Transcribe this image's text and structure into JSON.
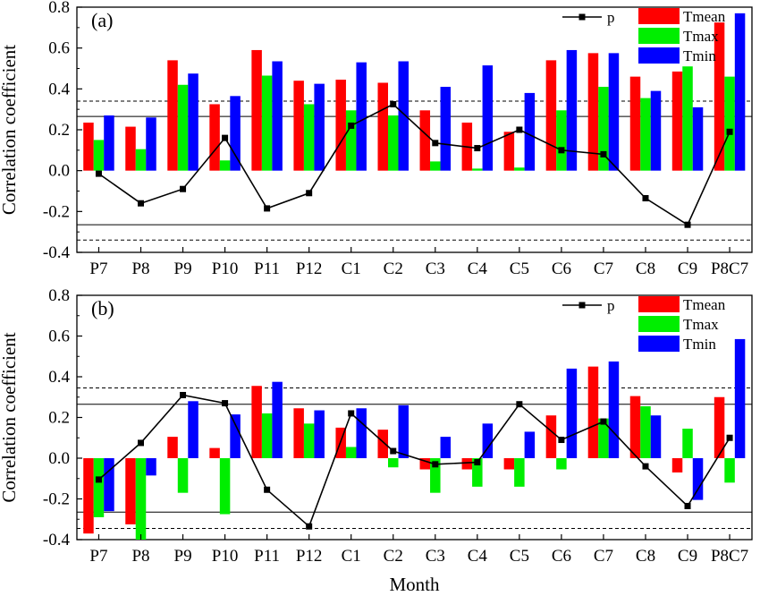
{
  "chart_data": [
    {
      "type": "bar",
      "panel_label": "(a)",
      "xlabel": "",
      "ylabel": "Correlation coefficient",
      "ylim": [
        -0.4,
        0.8
      ],
      "yticks": [
        "-0.4",
        "-0.2",
        "0.0",
        "0.2",
        "0.4",
        "0.6",
        "0.8"
      ],
      "categories": [
        "P7",
        "P8",
        "P9",
        "P10",
        "P11",
        "P12",
        "C1",
        "C2",
        "C3",
        "C4",
        "C5",
        "C6",
        "C7",
        "C8",
        "C9",
        "P8C7"
      ],
      "series": [
        {
          "name": "Tmean",
          "color": "#ff0000",
          "values": [
            0.235,
            0.215,
            0.54,
            0.325,
            0.59,
            0.44,
            0.445,
            0.43,
            0.295,
            0.235,
            0.19,
            0.54,
            0.575,
            0.46,
            0.485,
            0.725
          ]
        },
        {
          "name": "Tmax",
          "color": "#00ee00",
          "values": [
            0.15,
            0.105,
            0.42,
            0.05,
            0.465,
            0.325,
            0.295,
            0.27,
            0.045,
            0.01,
            0.015,
            0.295,
            0.41,
            0.355,
            0.51,
            0.46
          ]
        },
        {
          "name": "Tmin",
          "color": "#0000ff",
          "values": [
            0.27,
            0.26,
            0.475,
            0.365,
            0.535,
            0.425,
            0.53,
            0.535,
            0.41,
            0.515,
            0.38,
            0.59,
            0.575,
            0.39,
            0.31,
            0.77
          ]
        }
      ],
      "line_series": {
        "name": "p",
        "color": "#000000",
        "values": [
          -0.015,
          -0.16,
          -0.09,
          0.16,
          -0.185,
          -0.11,
          0.22,
          0.325,
          0.135,
          0.11,
          0.2,
          0.1,
          0.08,
          -0.135,
          -0.265,
          0.19
        ]
      },
      "reference_lines": {
        "solid": [
          0.265,
          -0.265
        ],
        "dashed": [
          0.34,
          -0.34
        ]
      },
      "legend_position": "top-right",
      "grid": false
    },
    {
      "type": "bar",
      "panel_label": "(b)",
      "xlabel": "Month",
      "ylabel": "Correlation coefficient",
      "ylim": [
        -0.4,
        0.8
      ],
      "yticks": [
        "-0.4",
        "-0.2",
        "0.0",
        "0.2",
        "0.4",
        "0.6",
        "0.8"
      ],
      "categories": [
        "P7",
        "P8",
        "P9",
        "P10",
        "P11",
        "P12",
        "C1",
        "C2",
        "C3",
        "C4",
        "C5",
        "C6",
        "C7",
        "C8",
        "C9",
        "P8C7"
      ],
      "series": [
        {
          "name": "Tmean",
          "color": "#ff0000",
          "values": [
            -0.37,
            -0.325,
            0.105,
            0.05,
            0.355,
            0.245,
            0.15,
            0.14,
            -0.055,
            -0.055,
            -0.055,
            0.21,
            0.45,
            0.305,
            -0.07,
            0.3
          ]
        },
        {
          "name": "Tmax",
          "color": "#00ee00",
          "values": [
            -0.29,
            -0.4,
            -0.17,
            -0.275,
            0.22,
            0.17,
            0.055,
            -0.045,
            -0.17,
            -0.14,
            -0.14,
            -0.055,
            0.195,
            0.255,
            0.145,
            -0.12
          ]
        },
        {
          "name": "Tmin",
          "color": "#0000ff",
          "values": [
            -0.26,
            -0.085,
            0.28,
            0.215,
            0.375,
            0.235,
            0.245,
            0.26,
            0.105,
            0.17,
            0.13,
            0.44,
            0.475,
            0.21,
            -0.205,
            0.585
          ]
        }
      ],
      "line_series": {
        "name": "p",
        "color": "#000000",
        "values": [
          -0.105,
          0.075,
          0.31,
          0.27,
          -0.155,
          -0.335,
          0.22,
          0.035,
          -0.03,
          -0.02,
          0.265,
          0.09,
          0.18,
          -0.04,
          -0.235,
          0.1
        ]
      },
      "reference_lines": {
        "solid": [
          0.265,
          -0.265
        ],
        "dashed": [
          0.345,
          -0.345
        ]
      },
      "legend_position": "top-right",
      "grid": false
    }
  ]
}
